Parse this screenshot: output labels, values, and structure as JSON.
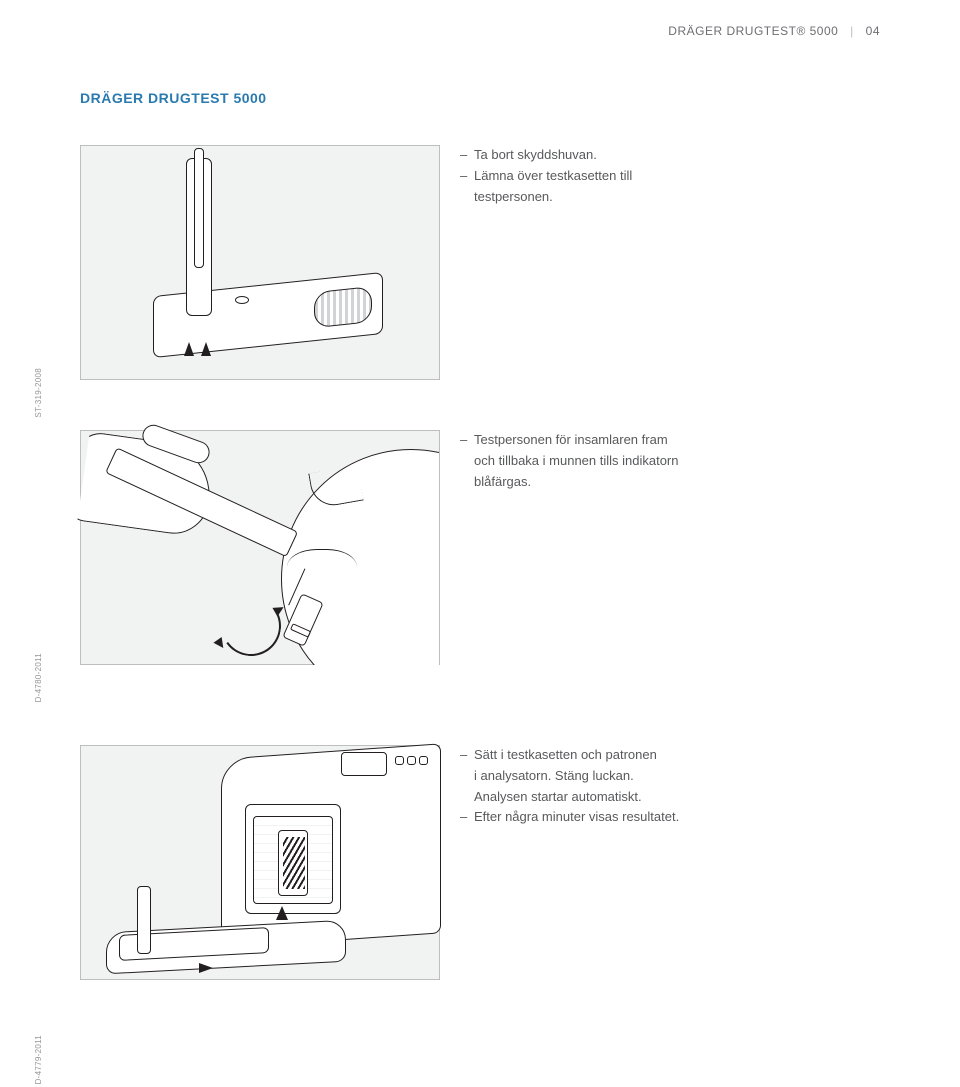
{
  "header": {
    "brand": "DRÄGER DRUGTEST® 5000",
    "separator": "|",
    "page": "04"
  },
  "section_title": "DRÄGER DRUGTEST 5000",
  "steps": {
    "step1": {
      "line1": "Ta bort skyddshuvan.",
      "line2a": "Lämna över testkasetten till",
      "line2b": "testpersonen."
    },
    "step2": {
      "line1a": "Testpersonen för insamlaren fram",
      "line1b": "och tillbaka i munnen tills indikatorn",
      "line1c": "blåfärgas."
    },
    "step3": {
      "line1a": "Sätt i testkasetten och patronen",
      "line1b": "i analysatorn. Stäng luckan.",
      "line1c": "Analysen startar automatiskt.",
      "line2": "Efter några minuter visas resultatet."
    }
  },
  "labels": {
    "code1": "ST-319-2008",
    "code2": "D-4780-2011",
    "code3": "D-4779-2011"
  },
  "colors": {
    "title_color": "#2a7ab0",
    "text_color": "#58595b",
    "header_color": "#6d6e71",
    "border_color": "#bcbec0",
    "illustration_bg": "#f1f2f2",
    "stroke": "#231f20"
  },
  "typography": {
    "title_fontsize": 14,
    "body_fontsize": 13,
    "header_fontsize": 12,
    "vlabel_fontsize": 8
  },
  "dash": "–"
}
